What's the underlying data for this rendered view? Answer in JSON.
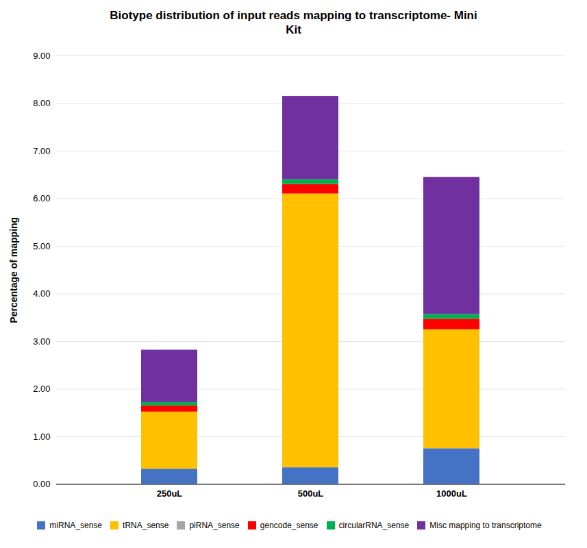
{
  "chart_data": {
    "type": "bar",
    "stacked": true,
    "title": "Biotype distribution of input reads mapping to transcriptome- Mini\nKit",
    "ylabel": "Percentage of mapping",
    "categories": [
      "250uL",
      "500uL",
      "1000uL"
    ],
    "series": [
      {
        "name": "miRNA_sense",
        "color": "#4472C4",
        "values": [
          0.32,
          0.35,
          0.75
        ]
      },
      {
        "name": "tRNA_sense",
        "color": "#FFC000",
        "values": [
          1.2,
          5.75,
          2.5
        ]
      },
      {
        "name": "piRNA_sense",
        "color": "#A5A5A5",
        "values": [
          0.0,
          0.0,
          0.0
        ]
      },
      {
        "name": "gencode_sense",
        "color": "#FF0000",
        "values": [
          0.13,
          0.2,
          0.22
        ]
      },
      {
        "name": "circularRNA_sense",
        "color": "#00B050",
        "values": [
          0.07,
          0.1,
          0.1
        ]
      },
      {
        "name": "Misc mapping to transcriptome",
        "color": "#7030A0",
        "values": [
          1.1,
          1.75,
          2.88
        ]
      }
    ],
    "ylim": [
      0,
      9.0
    ],
    "yticks": [
      {
        "value": 0.0,
        "label": "0.00"
      },
      {
        "value": 1.0,
        "label": "1.00"
      },
      {
        "value": 2.0,
        "label": "2.00"
      },
      {
        "value": 3.0,
        "label": "3.00"
      },
      {
        "value": 4.0,
        "label": "4.00"
      },
      {
        "value": 5.0,
        "label": "5.00"
      },
      {
        "value": 6.0,
        "label": "6.00"
      },
      {
        "value": 7.0,
        "label": "7.00"
      },
      {
        "value": 8.0,
        "label": "8.00"
      },
      {
        "value": 9.0,
        "label": "9.00"
      }
    ],
    "grid": true,
    "legend": "bottom"
  }
}
